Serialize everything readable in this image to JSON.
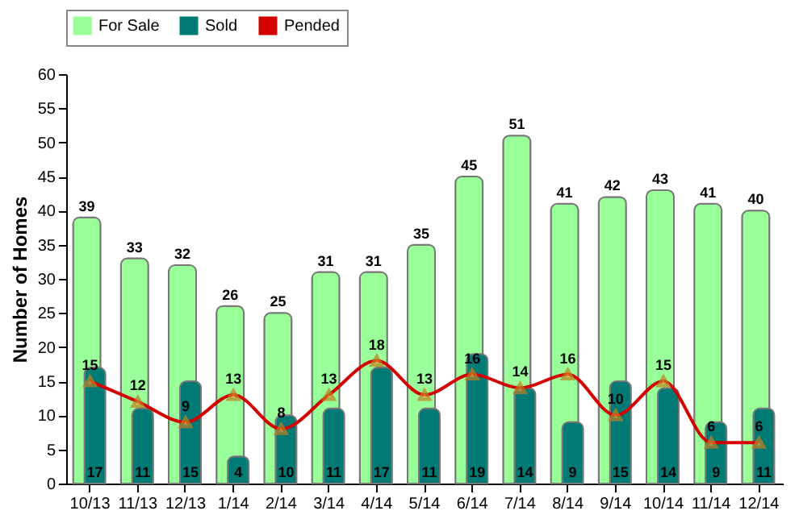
{
  "chart_data": {
    "type": "bar",
    "ylabel": "Number of Homes",
    "categories": [
      "10/13",
      "11/13",
      "12/13",
      "1/14",
      "2/14",
      "3/14",
      "4/14",
      "5/14",
      "6/14",
      "7/14",
      "8/14",
      "9/14",
      "10/14",
      "11/14",
      "12/14"
    ],
    "series": [
      {
        "name": "For Sale",
        "color": "#99ff99",
        "values": [
          39,
          33,
          32,
          26,
          25,
          31,
          31,
          35,
          45,
          51,
          41,
          42,
          43,
          41,
          40
        ]
      },
      {
        "name": "Sold",
        "color": "#007a74",
        "values": [
          17,
          11,
          15,
          4,
          10,
          11,
          17,
          11,
          19,
          14,
          9,
          15,
          14,
          9,
          11
        ]
      },
      {
        "name": "Pended",
        "type": "line",
        "color": "#d40000",
        "marker": "triangle",
        "values": [
          15,
          12,
          9,
          13,
          8,
          13,
          18,
          13,
          16,
          14,
          16,
          10,
          15,
          6,
          6
        ]
      }
    ],
    "ylim": [
      0,
      60
    ],
    "yticks": [
      0,
      5,
      10,
      15,
      20,
      25,
      30,
      35,
      40,
      45,
      50,
      55,
      60
    ],
    "data_labels": true,
    "legend": "top",
    "grid": false
  }
}
